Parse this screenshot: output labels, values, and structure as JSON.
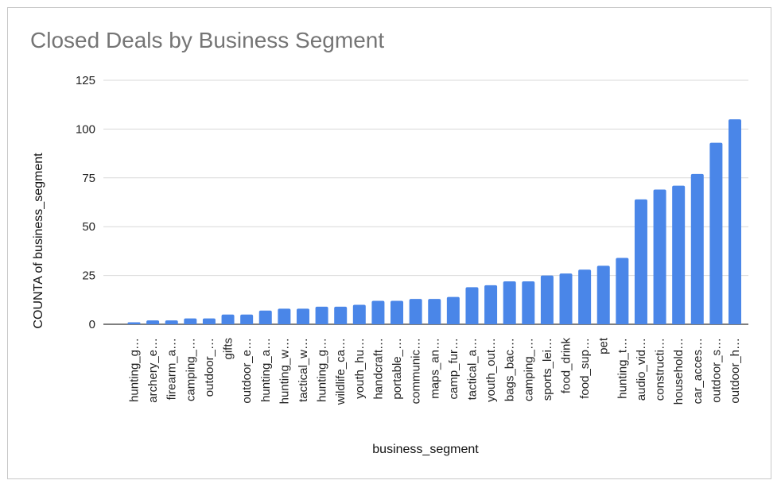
{
  "chart_data": {
    "type": "bar",
    "title": "Closed Deals by Business Segment",
    "xlabel": "business_segment",
    "ylabel": "COUNTA of business_segment",
    "ylim": [
      0,
      125
    ],
    "yticks": [
      0,
      25,
      50,
      75,
      100,
      125
    ],
    "grid": true,
    "legend": "none",
    "bar_color": "#4a86e8",
    "grid_color": "#d9d9d9",
    "title_color": "#757575",
    "categories": [
      "hunting_g…",
      "archery_e…",
      "firearm_a…",
      "camping_…",
      "outdoor_…",
      "gifts",
      "outdoor_e…",
      "hunting_a…",
      "hunting_w…",
      "tactical_w…",
      "hunting_g…",
      "wildlife_ca…",
      "youth_hu…",
      "handcraft…",
      "portable_…",
      "communic…",
      "maps_an…",
      "camp_fur…",
      "tactical_a…",
      "youth_out…",
      "bags_bac…",
      "camping_…",
      "sports_lei…",
      "food_drink",
      "food_sup…",
      "pet",
      "hunting_t…",
      "audio_vid…",
      "constructi…",
      "household…",
      "car_acces…",
      "outdoor_s…",
      "outdoor_h…"
    ],
    "values": [
      1,
      2,
      2,
      3,
      3,
      5,
      5,
      7,
      8,
      8,
      9,
      9,
      10,
      12,
      12,
      13,
      13,
      14,
      19,
      20,
      22,
      22,
      25,
      26,
      28,
      30,
      34,
      64,
      69,
      71,
      77,
      93,
      105
    ]
  }
}
